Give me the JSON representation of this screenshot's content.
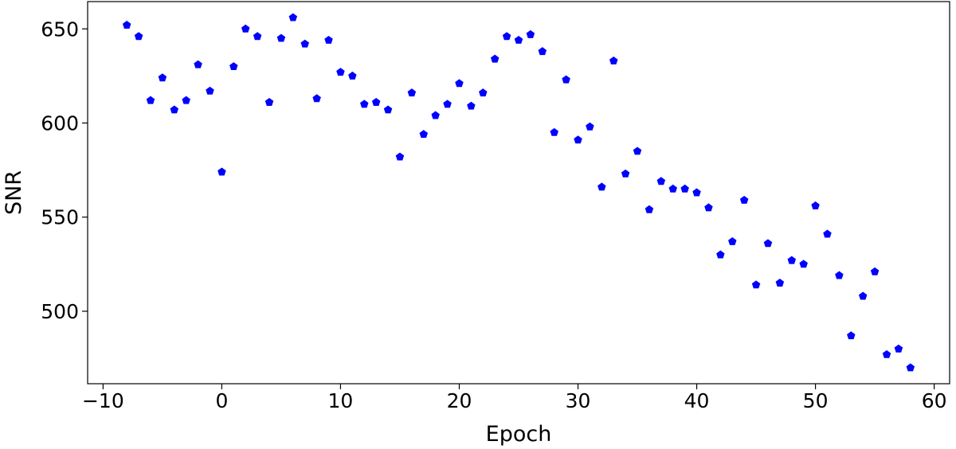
{
  "chart_data": {
    "type": "scatter",
    "xlabel": "Epoch",
    "ylabel": "SNR",
    "color": "#0000ff",
    "marker": "pentagon",
    "x": [
      -8,
      -7,
      -6,
      -5,
      -4,
      -3,
      -2,
      -1,
      0,
      1,
      2,
      3,
      4,
      5,
      6,
      7,
      8,
      9,
      10,
      11,
      12,
      13,
      14,
      15,
      16,
      17,
      18,
      19,
      20,
      21,
      22,
      23,
      24,
      25,
      26,
      27,
      28,
      29,
      30,
      31,
      32,
      33,
      34,
      35,
      36,
      37,
      38,
      39,
      40,
      41,
      42,
      43,
      44,
      45,
      46,
      47,
      48,
      49,
      50,
      51,
      52,
      53,
      54,
      55,
      56,
      57,
      58
    ],
    "values": [
      652,
      646,
      612,
      624,
      607,
      612,
      631,
      617,
      574,
      630,
      650,
      646,
      611,
      645,
      656,
      642,
      613,
      644,
      627,
      625,
      610,
      611,
      607,
      582,
      616,
      594,
      604,
      610,
      621,
      609,
      616,
      634,
      646,
      644,
      647,
      638,
      595,
      623,
      591,
      598,
      566,
      633,
      573,
      585,
      554,
      569,
      565,
      565,
      563,
      555,
      530,
      537,
      559,
      514,
      536,
      515,
      527,
      525,
      556,
      541,
      519,
      487,
      508,
      521,
      477,
      480,
      470
    ],
    "xlim": [
      -11.3,
      61.3
    ],
    "ylim": [
      461.5,
      664.5
    ],
    "xticks": [
      {
        "value": -10,
        "label": "−10"
      },
      0,
      10,
      20,
      30,
      40,
      50,
      60
    ],
    "yticks": [
      500,
      550,
      600,
      650
    ]
  }
}
